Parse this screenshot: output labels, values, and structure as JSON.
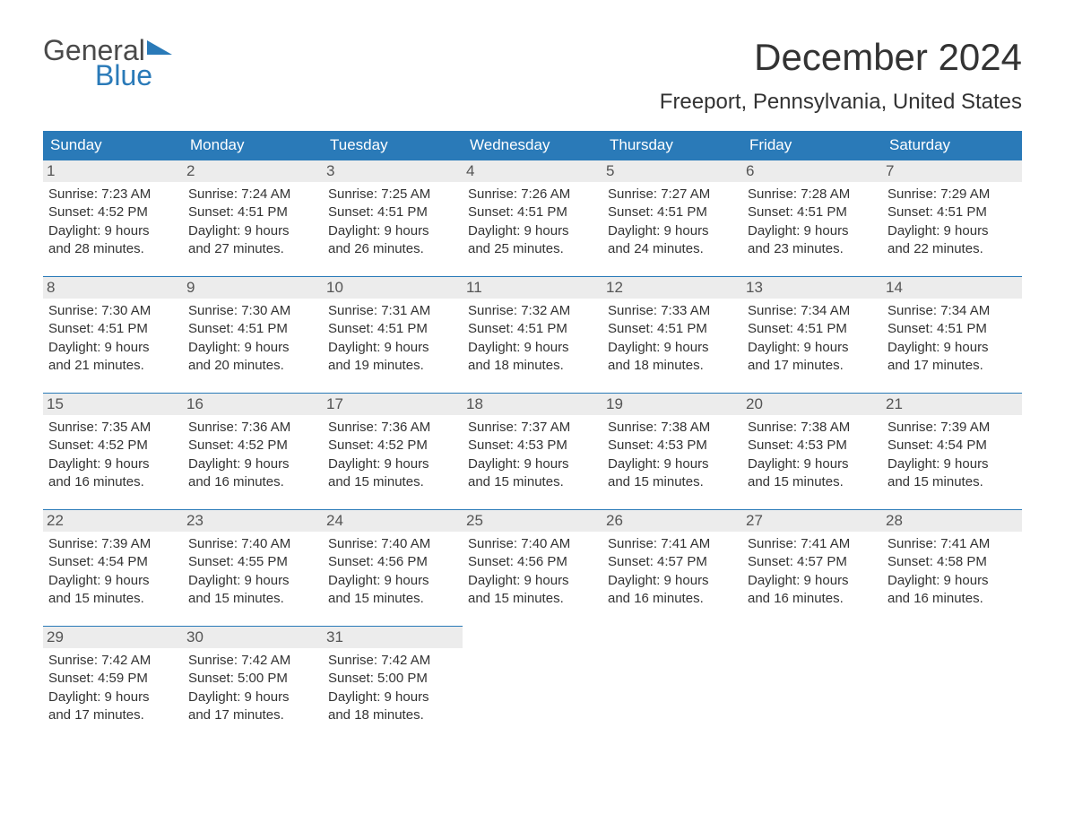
{
  "brand": {
    "part1": "General",
    "part2": "Blue"
  },
  "title": "December 2024",
  "location": "Freeport, Pennsylvania, United States",
  "colors": {
    "header_bg": "#2a7ab8",
    "daybar_bg": "#ececec",
    "daybar_border": "#2a7ab8"
  },
  "day_headers": [
    "Sunday",
    "Monday",
    "Tuesday",
    "Wednesday",
    "Thursday",
    "Friday",
    "Saturday"
  ],
  "weeks": [
    [
      {
        "n": "1",
        "sunrise": "Sunrise: 7:23 AM",
        "sunset": "Sunset: 4:52 PM",
        "dl1": "Daylight: 9 hours",
        "dl2": "and 28 minutes."
      },
      {
        "n": "2",
        "sunrise": "Sunrise: 7:24 AM",
        "sunset": "Sunset: 4:51 PM",
        "dl1": "Daylight: 9 hours",
        "dl2": "and 27 minutes."
      },
      {
        "n": "3",
        "sunrise": "Sunrise: 7:25 AM",
        "sunset": "Sunset: 4:51 PM",
        "dl1": "Daylight: 9 hours",
        "dl2": "and 26 minutes."
      },
      {
        "n": "4",
        "sunrise": "Sunrise: 7:26 AM",
        "sunset": "Sunset: 4:51 PM",
        "dl1": "Daylight: 9 hours",
        "dl2": "and 25 minutes."
      },
      {
        "n": "5",
        "sunrise": "Sunrise: 7:27 AM",
        "sunset": "Sunset: 4:51 PM",
        "dl1": "Daylight: 9 hours",
        "dl2": "and 24 minutes."
      },
      {
        "n": "6",
        "sunrise": "Sunrise: 7:28 AM",
        "sunset": "Sunset: 4:51 PM",
        "dl1": "Daylight: 9 hours",
        "dl2": "and 23 minutes."
      },
      {
        "n": "7",
        "sunrise": "Sunrise: 7:29 AM",
        "sunset": "Sunset: 4:51 PM",
        "dl1": "Daylight: 9 hours",
        "dl2": "and 22 minutes."
      }
    ],
    [
      {
        "n": "8",
        "sunrise": "Sunrise: 7:30 AM",
        "sunset": "Sunset: 4:51 PM",
        "dl1": "Daylight: 9 hours",
        "dl2": "and 21 minutes."
      },
      {
        "n": "9",
        "sunrise": "Sunrise: 7:30 AM",
        "sunset": "Sunset: 4:51 PM",
        "dl1": "Daylight: 9 hours",
        "dl2": "and 20 minutes."
      },
      {
        "n": "10",
        "sunrise": "Sunrise: 7:31 AM",
        "sunset": "Sunset: 4:51 PM",
        "dl1": "Daylight: 9 hours",
        "dl2": "and 19 minutes."
      },
      {
        "n": "11",
        "sunrise": "Sunrise: 7:32 AM",
        "sunset": "Sunset: 4:51 PM",
        "dl1": "Daylight: 9 hours",
        "dl2": "and 18 minutes."
      },
      {
        "n": "12",
        "sunrise": "Sunrise: 7:33 AM",
        "sunset": "Sunset: 4:51 PM",
        "dl1": "Daylight: 9 hours",
        "dl2": "and 18 minutes."
      },
      {
        "n": "13",
        "sunrise": "Sunrise: 7:34 AM",
        "sunset": "Sunset: 4:51 PM",
        "dl1": "Daylight: 9 hours",
        "dl2": "and 17 minutes."
      },
      {
        "n": "14",
        "sunrise": "Sunrise: 7:34 AM",
        "sunset": "Sunset: 4:51 PM",
        "dl1": "Daylight: 9 hours",
        "dl2": "and 17 minutes."
      }
    ],
    [
      {
        "n": "15",
        "sunrise": "Sunrise: 7:35 AM",
        "sunset": "Sunset: 4:52 PM",
        "dl1": "Daylight: 9 hours",
        "dl2": "and 16 minutes."
      },
      {
        "n": "16",
        "sunrise": "Sunrise: 7:36 AM",
        "sunset": "Sunset: 4:52 PM",
        "dl1": "Daylight: 9 hours",
        "dl2": "and 16 minutes."
      },
      {
        "n": "17",
        "sunrise": "Sunrise: 7:36 AM",
        "sunset": "Sunset: 4:52 PM",
        "dl1": "Daylight: 9 hours",
        "dl2": "and 15 minutes."
      },
      {
        "n": "18",
        "sunrise": "Sunrise: 7:37 AM",
        "sunset": "Sunset: 4:53 PM",
        "dl1": "Daylight: 9 hours",
        "dl2": "and 15 minutes."
      },
      {
        "n": "19",
        "sunrise": "Sunrise: 7:38 AM",
        "sunset": "Sunset: 4:53 PM",
        "dl1": "Daylight: 9 hours",
        "dl2": "and 15 minutes."
      },
      {
        "n": "20",
        "sunrise": "Sunrise: 7:38 AM",
        "sunset": "Sunset: 4:53 PM",
        "dl1": "Daylight: 9 hours",
        "dl2": "and 15 minutes."
      },
      {
        "n": "21",
        "sunrise": "Sunrise: 7:39 AM",
        "sunset": "Sunset: 4:54 PM",
        "dl1": "Daylight: 9 hours",
        "dl2": "and 15 minutes."
      }
    ],
    [
      {
        "n": "22",
        "sunrise": "Sunrise: 7:39 AM",
        "sunset": "Sunset: 4:54 PM",
        "dl1": "Daylight: 9 hours",
        "dl2": "and 15 minutes."
      },
      {
        "n": "23",
        "sunrise": "Sunrise: 7:40 AM",
        "sunset": "Sunset: 4:55 PM",
        "dl1": "Daylight: 9 hours",
        "dl2": "and 15 minutes."
      },
      {
        "n": "24",
        "sunrise": "Sunrise: 7:40 AM",
        "sunset": "Sunset: 4:56 PM",
        "dl1": "Daylight: 9 hours",
        "dl2": "and 15 minutes."
      },
      {
        "n": "25",
        "sunrise": "Sunrise: 7:40 AM",
        "sunset": "Sunset: 4:56 PM",
        "dl1": "Daylight: 9 hours",
        "dl2": "and 15 minutes."
      },
      {
        "n": "26",
        "sunrise": "Sunrise: 7:41 AM",
        "sunset": "Sunset: 4:57 PM",
        "dl1": "Daylight: 9 hours",
        "dl2": "and 16 minutes."
      },
      {
        "n": "27",
        "sunrise": "Sunrise: 7:41 AM",
        "sunset": "Sunset: 4:57 PM",
        "dl1": "Daylight: 9 hours",
        "dl2": "and 16 minutes."
      },
      {
        "n": "28",
        "sunrise": "Sunrise: 7:41 AM",
        "sunset": "Sunset: 4:58 PM",
        "dl1": "Daylight: 9 hours",
        "dl2": "and 16 minutes."
      }
    ],
    [
      {
        "n": "29",
        "sunrise": "Sunrise: 7:42 AM",
        "sunset": "Sunset: 4:59 PM",
        "dl1": "Daylight: 9 hours",
        "dl2": "and 17 minutes."
      },
      {
        "n": "30",
        "sunrise": "Sunrise: 7:42 AM",
        "sunset": "Sunset: 5:00 PM",
        "dl1": "Daylight: 9 hours",
        "dl2": "and 17 minutes."
      },
      {
        "n": "31",
        "sunrise": "Sunrise: 7:42 AM",
        "sunset": "Sunset: 5:00 PM",
        "dl1": "Daylight: 9 hours",
        "dl2": "and 18 minutes."
      },
      null,
      null,
      null,
      null
    ]
  ]
}
